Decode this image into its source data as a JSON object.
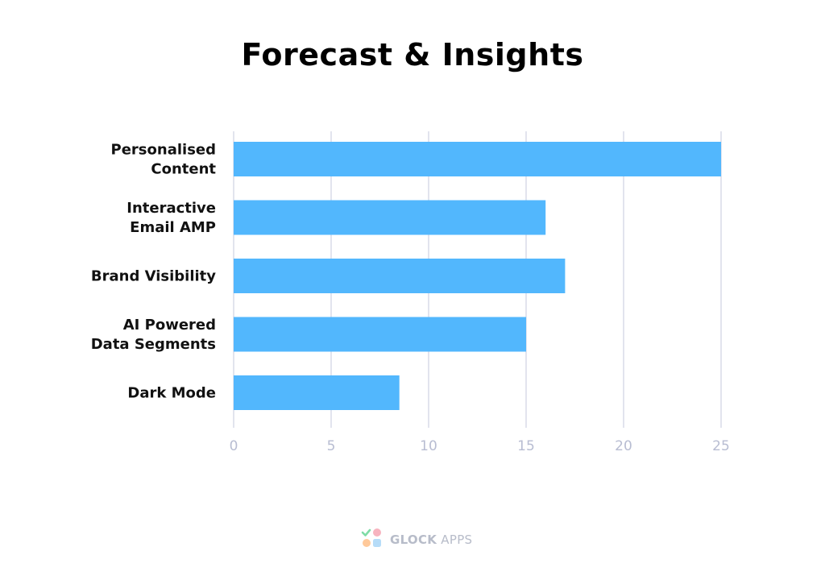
{
  "footer": {
    "brand_bold": "GLOCK",
    "brand_light": "APPS"
  },
  "colors": {
    "bar": "#52b7fd",
    "grid": "#cfd3e3",
    "tick": "#b8bdd2",
    "label": "#111111"
  },
  "chart_data": {
    "type": "bar",
    "orientation": "horizontal",
    "title": "Forecast & Insights",
    "categories": [
      [
        "Personalised",
        "Content"
      ],
      [
        "Interactive",
        "Email AMP"
      ],
      [
        "Brand Visibility"
      ],
      [
        "AI Powered",
        "Data Segments"
      ],
      [
        "Dark Mode"
      ]
    ],
    "values": [
      25,
      16,
      17,
      15,
      8.5
    ],
    "xlim": [
      0,
      25
    ],
    "xticks": [
      0,
      5,
      10,
      15,
      20,
      25
    ],
    "grid": true,
    "legend": "none"
  }
}
